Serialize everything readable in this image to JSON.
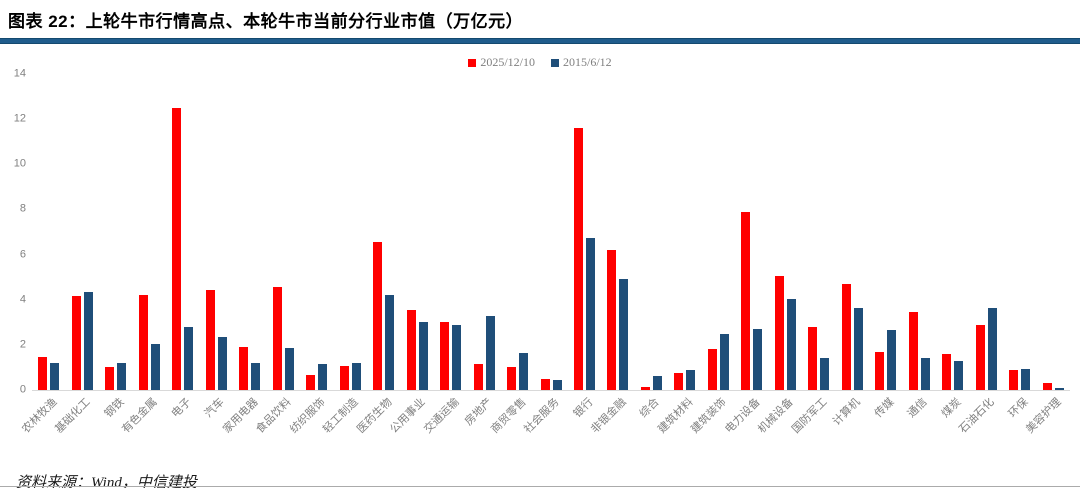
{
  "header": {
    "title": "图表 22：上轮牛市行情高点、本轮牛市当前分行业市值（万亿元）"
  },
  "footer": {
    "source": "资料来源：Wind，中信建投"
  },
  "colors": {
    "series1_red": "#FF0000",
    "series2_blue": "#1F4E79",
    "title_rule": "#1F5C8C",
    "axis_text": "#808080",
    "axis_line": "#D9D9D9"
  },
  "chart_data": {
    "type": "bar",
    "title": "图表 22：上轮牛市行情高点、本轮牛市当前分行业市值（万亿元）",
    "xlabel": "",
    "ylabel": "",
    "ylim": [
      0,
      14
    ],
    "yticks": [
      0,
      2,
      4,
      6,
      8,
      10,
      12,
      14
    ],
    "grid": false,
    "legend_position": "top-center",
    "categories": [
      "农林牧渔",
      "基础化工",
      "钢铁",
      "有色金属",
      "电子",
      "汽车",
      "家用电器",
      "食品饮料",
      "纺织服饰",
      "轻工制造",
      "医药生物",
      "公用事业",
      "交通运输",
      "房地产",
      "商贸零售",
      "社会服务",
      "银行",
      "非银金融",
      "综合",
      "建筑材料",
      "建筑装饰",
      "电力设备",
      "机械设备",
      "国防军工",
      "计算机",
      "传媒",
      "通信",
      "煤炭",
      "石油石化",
      "环保",
      "美容护理"
    ],
    "series": [
      {
        "name": "2025/12/10",
        "color": "#FF0000",
        "values": [
          1.45,
          4.15,
          1.0,
          4.2,
          12.5,
          4.45,
          1.9,
          4.55,
          0.65,
          1.05,
          6.55,
          3.55,
          3.0,
          1.15,
          1.0,
          0.5,
          11.6,
          6.2,
          0.15,
          0.75,
          1.8,
          7.9,
          5.05,
          2.8,
          4.7,
          1.7,
          3.45,
          1.6,
          2.9,
          0.9,
          0.3
        ]
      },
      {
        "name": "2015/6/12",
        "color": "#1F4E79",
        "values": [
          1.2,
          4.35,
          1.2,
          2.05,
          2.8,
          2.35,
          1.2,
          1.85,
          1.15,
          1.2,
          4.2,
          3.0,
          2.9,
          3.3,
          1.65,
          0.45,
          6.75,
          4.9,
          0.6,
          0.9,
          2.5,
          2.7,
          4.05,
          1.4,
          3.65,
          2.65,
          1.4,
          1.3,
          3.65,
          0.95,
          0.1
        ]
      }
    ]
  }
}
